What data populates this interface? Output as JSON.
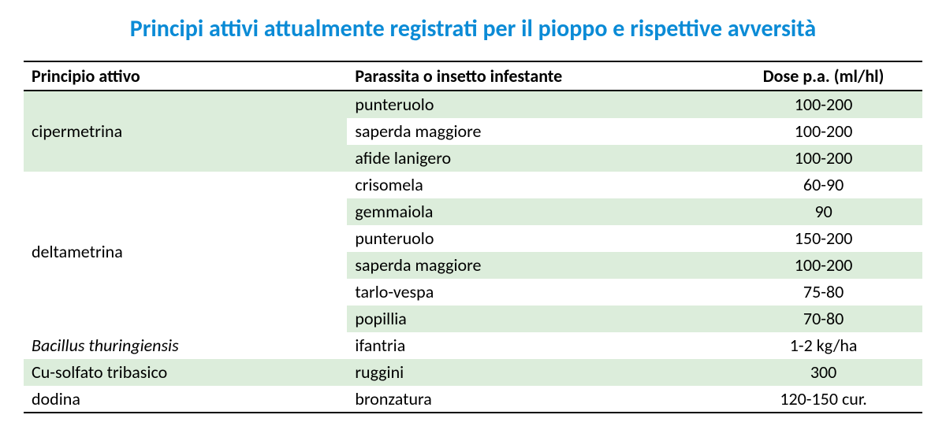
{
  "title": "Principi attivi attualmente registrati per il pioppo e rispettive avversità",
  "title_color": "#0b8bd6",
  "columns": {
    "col1": "Principio attivo",
    "col2": "Parassita o insetto infestante",
    "col3": "Dose p.a. (ml/hl)"
  },
  "colors": {
    "row_bg": "#dceddb",
    "row_alt": "#ffffff",
    "text": "#000000",
    "rule": "#000000"
  },
  "groups": [
    {
      "principio": "cipermetrina",
      "italic": false,
      "rows": [
        {
          "pest": "punteruolo",
          "dose": "100-200"
        },
        {
          "pest": "saperda maggiore",
          "dose": "100-200"
        },
        {
          "pest": "afide lanigero",
          "dose": "100-200"
        }
      ]
    },
    {
      "principio": "deltametrina",
      "italic": false,
      "rows": [
        {
          "pest": "crisomela",
          "dose": "60-90"
        },
        {
          "pest": "gemmaiola",
          "dose": "90"
        },
        {
          "pest": "punteruolo",
          "dose": "150-200"
        },
        {
          "pest": "saperda maggiore",
          "dose": "100-200"
        },
        {
          "pest": "tarlo-vespa",
          "dose": "75-80"
        },
        {
          "pest": "popillia",
          "dose": "70-80"
        }
      ]
    },
    {
      "principio": "Bacillus thuringiensis",
      "italic": true,
      "rows": [
        {
          "pest": "ifantria",
          "dose": "1-2 kg/ha"
        }
      ]
    },
    {
      "principio": "Cu-solfato tribasico",
      "italic": false,
      "rows": [
        {
          "pest": "ruggini",
          "dose": "300"
        }
      ]
    },
    {
      "principio": "dodina",
      "italic": false,
      "rows": [
        {
          "pest": "bronzatura",
          "dose": "120-150 cur."
        }
      ]
    }
  ]
}
